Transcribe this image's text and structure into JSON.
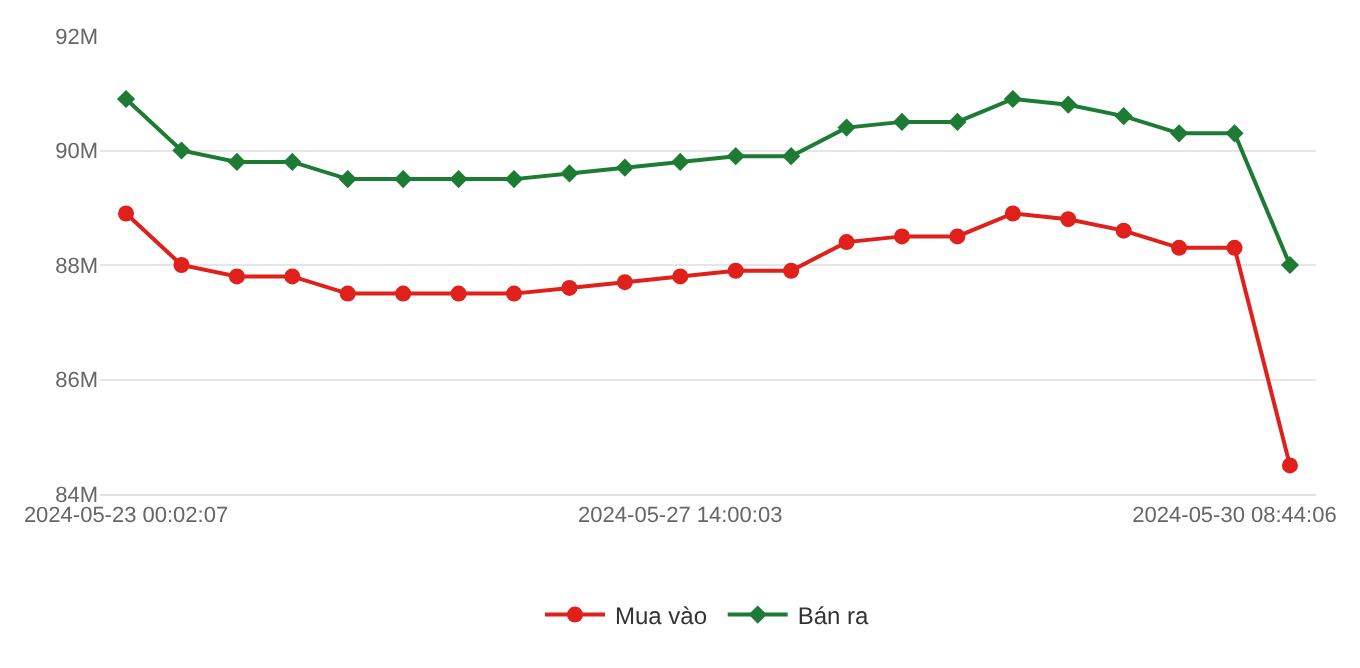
{
  "chart_data": {
    "type": "line",
    "categories": [
      "2024-05-23 00:02:07",
      null,
      null,
      null,
      null,
      null,
      null,
      null,
      null,
      null,
      "2024-05-27 14:00:03",
      null,
      null,
      null,
      null,
      null,
      null,
      null,
      null,
      null,
      "2024-05-30 08:44:06",
      null
    ],
    "series": [
      {
        "name": "Mua vào",
        "color": "#e0201b",
        "marker": "circle",
        "values": [
          88.9,
          88.0,
          87.8,
          87.8,
          87.5,
          87.5,
          87.5,
          87.5,
          87.6,
          87.7,
          87.8,
          87.9,
          87.9,
          88.4,
          88.5,
          88.5,
          88.9,
          88.8,
          88.6,
          88.3,
          88.3,
          84.5
        ]
      },
      {
        "name": "Bán ra",
        "color": "#1e7b34",
        "marker": "diamond",
        "values": [
          90.9,
          90.0,
          89.8,
          89.8,
          89.5,
          89.5,
          89.5,
          89.5,
          89.6,
          89.7,
          89.8,
          89.9,
          89.9,
          90.4,
          90.5,
          90.5,
          90.9,
          90.8,
          90.6,
          90.3,
          90.3,
          88.0
        ]
      }
    ],
    "ylim": [
      84,
      92
    ],
    "yticks": [
      {
        "value": 84,
        "label": "84M"
      },
      {
        "value": 86,
        "label": "86M"
      },
      {
        "value": 88,
        "label": "88M"
      },
      {
        "value": 90,
        "label": "90M"
      },
      {
        "value": 92,
        "label": "92M"
      }
    ],
    "grid": "y",
    "legend": "bottom",
    "line_style": "solid"
  }
}
